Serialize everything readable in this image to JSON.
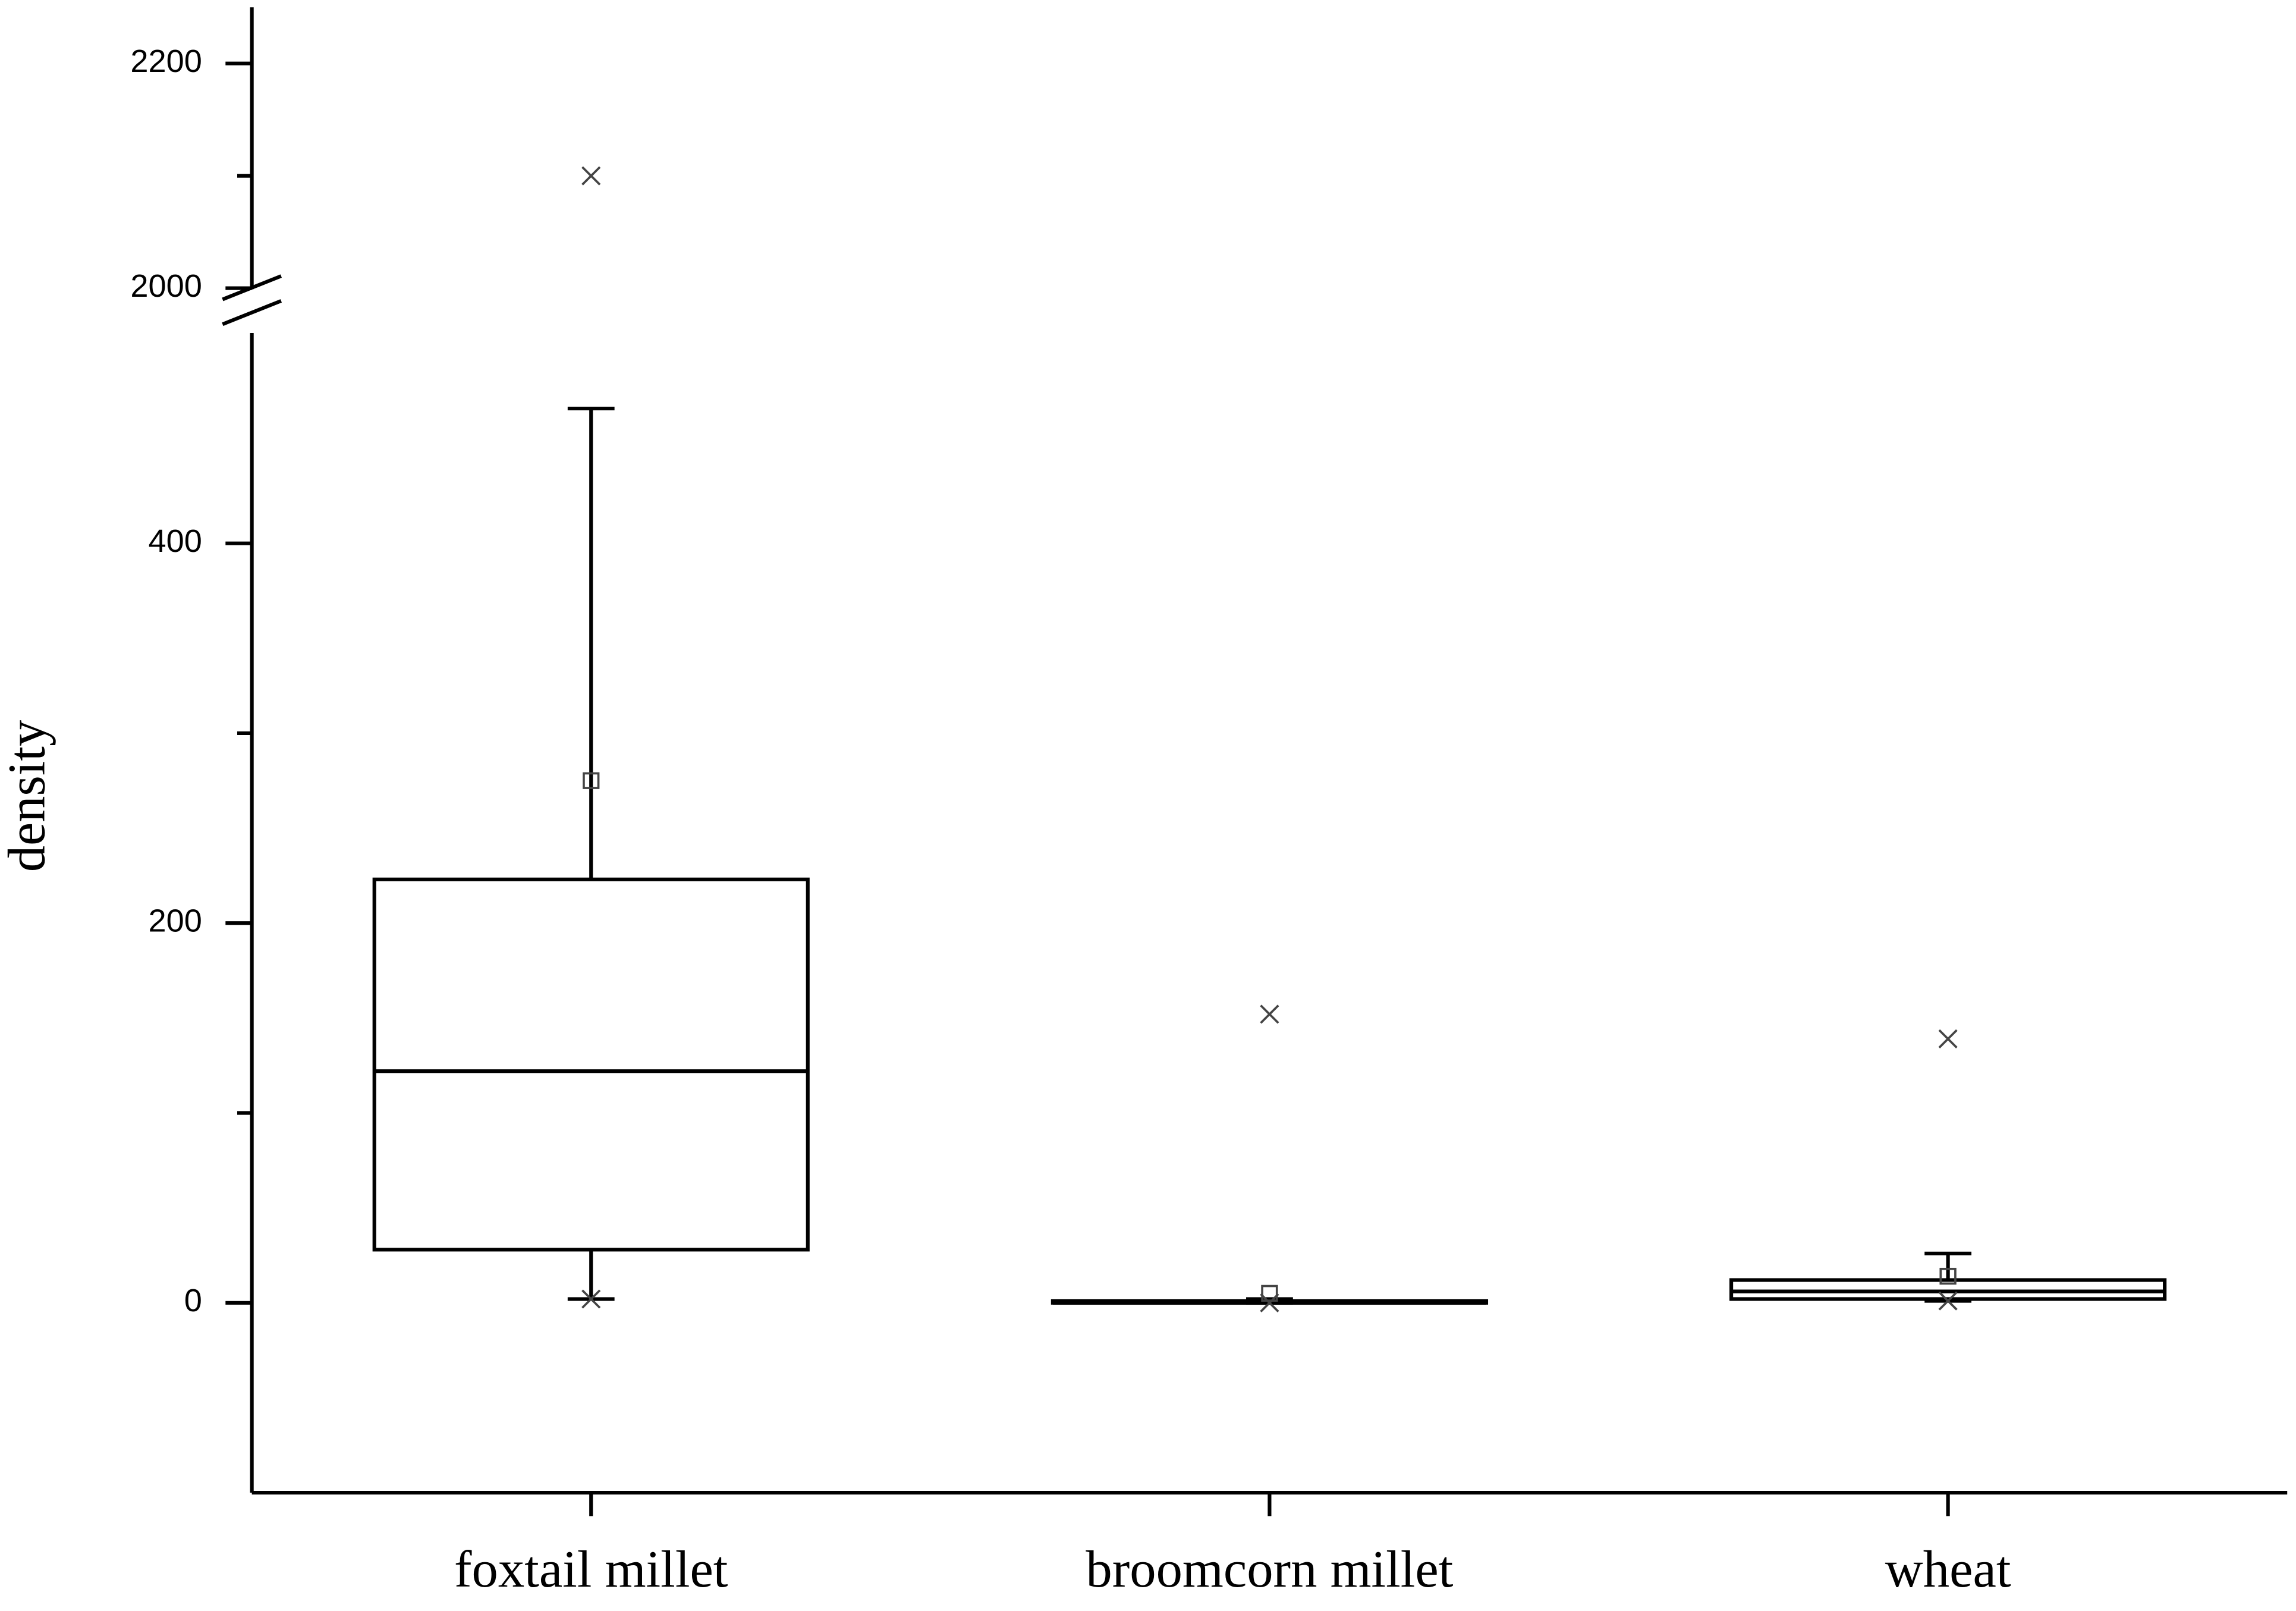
{
  "chart_data": {
    "type": "box",
    "y_label": "density",
    "categories": [
      "foxtail millet",
      "broomcorn millet",
      "wheat"
    ],
    "boxes": [
      {
        "whisker_low": 2,
        "q1": 28,
        "median": 122,
        "q3": 223,
        "whisker_high": 471,
        "mean": 275,
        "min": 2,
        "max": 2100
      },
      {
        "whisker_low": 0,
        "q1": 0,
        "median": 0,
        "q3": 1,
        "whisker_high": 2,
        "mean": 5,
        "min": 0,
        "max": 152
      },
      {
        "whisker_low": 1,
        "q1": 2,
        "median": 6,
        "q3": 12,
        "whisker_high": 26,
        "mean": 14,
        "min": 1,
        "max": 139
      }
    ],
    "ylim": [
      -100,
      2250
    ],
    "y_break": [
      500,
      1990
    ],
    "yticks": [
      0,
      200,
      400,
      2000,
      2200
    ],
    "yminor_ticks": [
      100,
      300,
      2100
    ],
    "color": "#000000"
  }
}
